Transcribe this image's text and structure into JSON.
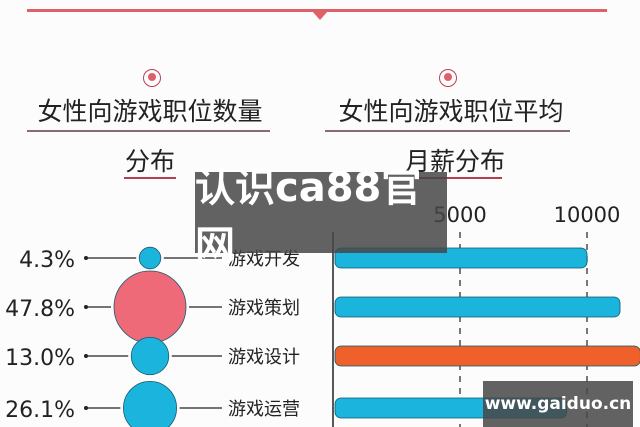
{
  "header": {
    "accent": "#e0606a"
  },
  "left_title": {
    "line1": "女性向游戏职位数量",
    "line2": "分布"
  },
  "right_title": {
    "line1": "女性向游戏职位平均",
    "line2": "月薪分布"
  },
  "watermarks": {
    "center": "认识ca88官网",
    "corner": "www.gaiduo.cn"
  },
  "chart_data": [
    {
      "type": "bubble",
      "title": "女性向游戏职位数量分布",
      "categories": [
        "游戏开发",
        "游戏策划",
        "游戏设计",
        "游戏运营"
      ],
      "labels": [
        "4.3%",
        "47.8%",
        "13.0%",
        "26.1%"
      ],
      "values": [
        4.3,
        47.8,
        13.0,
        26.1
      ],
      "colors": [
        "#1ab4dc",
        "#ef6a78",
        "#1ab4dc",
        "#1ab4dc"
      ]
    },
    {
      "type": "bar",
      "orientation": "horizontal",
      "title": "女性向游戏职位平均月薪分布",
      "categories": [
        "游戏开发",
        "游戏策划",
        "游戏设计",
        "游戏运营"
      ],
      "values": [
        10000,
        11300,
        12100,
        9200
      ],
      "colors": [
        "#1ab4dc",
        "#1ab4dc",
        "#f0602a",
        "#1ab4dc"
      ],
      "xticks": [
        "5000",
        "10000"
      ],
      "xtick_values": [
        5000,
        10000
      ],
      "grid": "dashed-vertical"
    }
  ]
}
